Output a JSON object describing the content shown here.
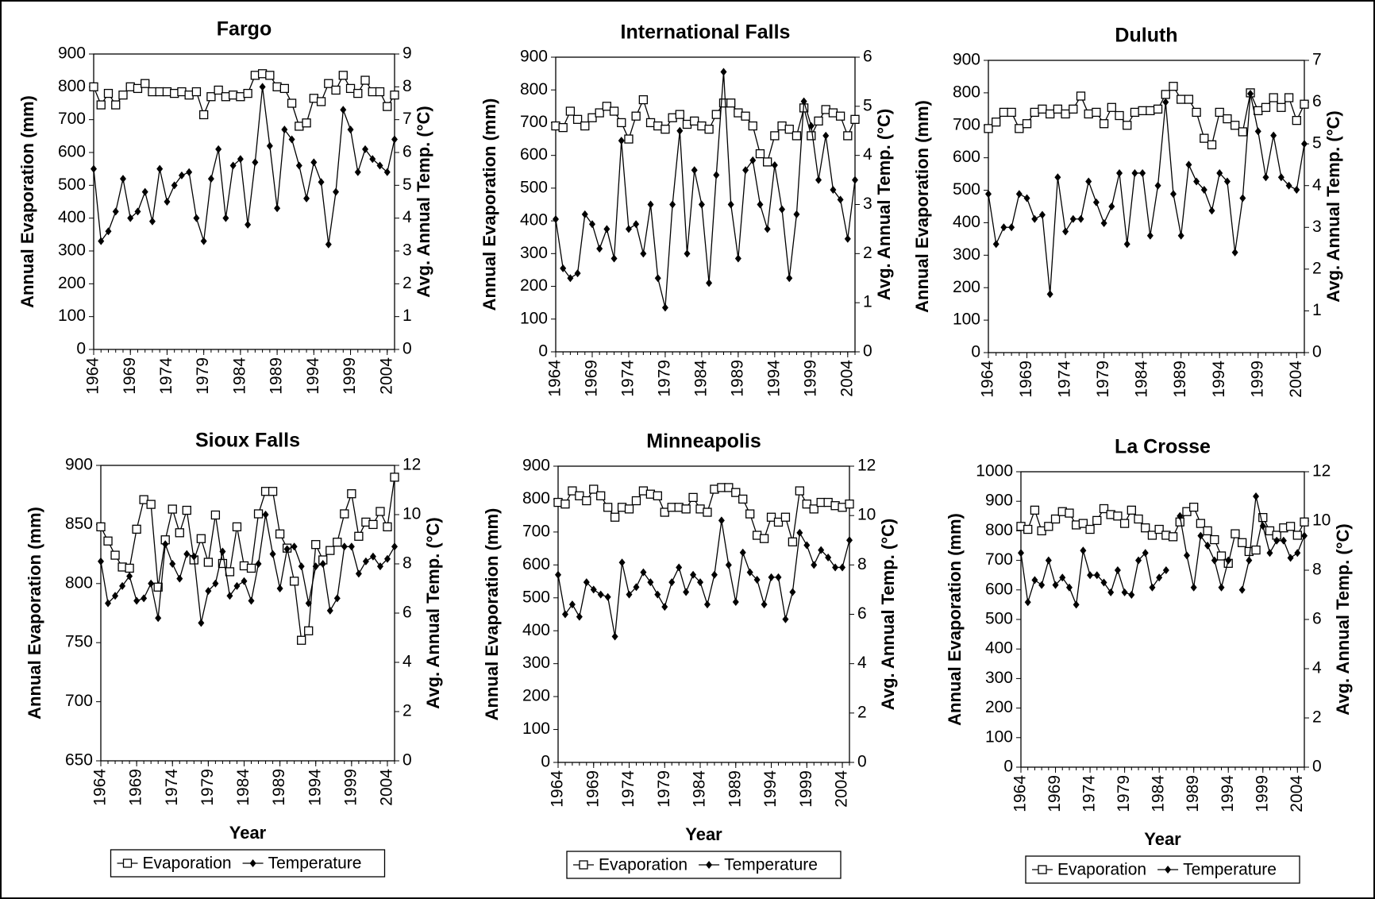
{
  "chart_data": [
    {
      "type": "line",
      "title": "Fargo",
      "ylabel": "Annual Evaporation (mm)",
      "y2label": "Avg. Annual Temp. (°C)",
      "x": [
        1964,
        1965,
        1966,
        1967,
        1968,
        1969,
        1970,
        1971,
        1972,
        1973,
        1974,
        1975,
        1976,
        1977,
        1978,
        1979,
        1980,
        1981,
        1982,
        1983,
        1984,
        1985,
        1986,
        1987,
        1988,
        1989,
        1990,
        1991,
        1992,
        1993,
        1994,
        1995,
        1996,
        1997,
        1998,
        1999,
        2000,
        2001,
        2002,
        2003,
        2004,
        2005
      ],
      "xlim": [
        1964,
        2005
      ],
      "xticks": [
        1964,
        1969,
        1974,
        1979,
        1984,
        1989,
        1994,
        1999,
        2004
      ],
      "ylim": [
        0,
        900
      ],
      "yticks": [
        0,
        100,
        200,
        300,
        400,
        500,
        600,
        700,
        800,
        900
      ],
      "y2lim": [
        0,
        9
      ],
      "y2ticks": [
        0,
        1,
        2,
        3,
        4,
        5,
        6,
        7,
        8,
        9
      ],
      "series": [
        {
          "name": "Evaporation",
          "color": "#000000",
          "marker": "square",
          "values": [
            800,
            745,
            780,
            745,
            775,
            800,
            795,
            810,
            785,
            785,
            785,
            780,
            785,
            775,
            785,
            715,
            770,
            790,
            770,
            775,
            770,
            780,
            835,
            840,
            835,
            800,
            795,
            750,
            680,
            690,
            765,
            755,
            810,
            790,
            835,
            795,
            780,
            820,
            785,
            785,
            740,
            775
          ]
        },
        {
          "name": "Temperature",
          "color": "#000000",
          "marker": "diamond",
          "axis": "y2",
          "values": [
            5.5,
            3.3,
            3.6,
            4.2,
            5.2,
            4.0,
            4.2,
            4.8,
            3.9,
            5.5,
            4.5,
            5.0,
            5.3,
            5.4,
            4.0,
            3.3,
            5.2,
            6.1,
            4.0,
            5.6,
            5.8,
            3.8,
            5.7,
            8.0,
            6.2,
            4.3,
            6.7,
            6.4,
            5.6,
            4.6,
            5.7,
            5.1,
            3.2,
            4.8,
            7.3,
            6.7,
            5.4,
            6.1,
            5.8,
            5.6,
            5.4,
            6.4
          ]
        }
      ]
    },
    {
      "type": "line",
      "title": "International Falls",
      "ylabel": "Annual Evaporation (mm)",
      "y2label": "Avg. Annual Temp. (°C)",
      "x": [
        1964,
        1965,
        1966,
        1967,
        1968,
        1969,
        1970,
        1971,
        1972,
        1973,
        1974,
        1975,
        1976,
        1977,
        1978,
        1979,
        1980,
        1981,
        1982,
        1983,
        1984,
        1985,
        1986,
        1987,
        1988,
        1989,
        1990,
        1991,
        1992,
        1993,
        1994,
        1995,
        1996,
        1997,
        1998,
        1999,
        2000,
        2001,
        2002,
        2003,
        2004,
        2005
      ],
      "xlim": [
        1964,
        2005
      ],
      "xticks": [
        1964,
        1969,
        1974,
        1979,
        1984,
        1989,
        1994,
        1999,
        2004
      ],
      "ylim": [
        0,
        900
      ],
      "yticks": [
        0,
        100,
        200,
        300,
        400,
        500,
        600,
        700,
        800,
        900
      ],
      "y2lim": [
        0,
        6
      ],
      "y2ticks": [
        0,
        1,
        2,
        3,
        4,
        5,
        6
      ],
      "series": [
        {
          "name": "Evaporation",
          "color": "#000000",
          "marker": "square",
          "values": [
            690,
            685,
            735,
            710,
            690,
            715,
            730,
            750,
            735,
            700,
            650,
            720,
            770,
            700,
            690,
            680,
            715,
            725,
            695,
            705,
            690,
            680,
            725,
            760,
            760,
            730,
            720,
            690,
            605,
            580,
            660,
            690,
            680,
            660,
            745,
            660,
            705,
            740,
            730,
            720,
            660,
            710
          ]
        },
        {
          "name": "Temperature",
          "color": "#000000",
          "marker": "diamond",
          "axis": "y2",
          "values": [
            2.7,
            1.7,
            1.5,
            1.6,
            2.8,
            2.6,
            2.1,
            2.5,
            1.9,
            4.3,
            2.5,
            2.6,
            2.0,
            3.0,
            1.5,
            0.9,
            3.0,
            4.5,
            2.0,
            3.7,
            3.0,
            1.4,
            3.6,
            5.7,
            3.0,
            1.9,
            3.7,
            3.9,
            3.0,
            2.5,
            3.8,
            2.9,
            1.5,
            2.8,
            5.1,
            4.6,
            3.5,
            4.4,
            3.3,
            3.1,
            2.3,
            3.5
          ]
        }
      ]
    },
    {
      "type": "line",
      "title": "Duluth",
      "ylabel": "Annual Evaporation (mm)",
      "y2label": "Avg. Annual Temp. (°C)",
      "x": [
        1964,
        1965,
        1966,
        1967,
        1968,
        1969,
        1970,
        1971,
        1972,
        1973,
        1974,
        1975,
        1976,
        1977,
        1978,
        1979,
        1980,
        1981,
        1982,
        1983,
        1984,
        1985,
        1986,
        1987,
        1988,
        1989,
        1990,
        1991,
        1992,
        1993,
        1994,
        1995,
        1996,
        1997,
        1998,
        1999,
        2000,
        2001,
        2002,
        2003,
        2004,
        2005
      ],
      "xlim": [
        1964,
        2005
      ],
      "xticks": [
        1964,
        1969,
        1974,
        1979,
        1984,
        1989,
        1994,
        1999,
        2004
      ],
      "ylim": [
        0,
        900
      ],
      "yticks": [
        0,
        100,
        200,
        300,
        400,
        500,
        600,
        700,
        800,
        900
      ],
      "y2lim": [
        0,
        7
      ],
      "y2ticks": [
        0,
        1,
        2,
        3,
        4,
        5,
        6,
        7
      ],
      "series": [
        {
          "name": "Evaporation",
          "color": "#000000",
          "marker": "square",
          "values": [
            690,
            710,
            740,
            740,
            690,
            705,
            740,
            750,
            735,
            750,
            735,
            750,
            790,
            735,
            740,
            705,
            755,
            730,
            700,
            740,
            745,
            745,
            750,
            795,
            820,
            780,
            780,
            740,
            660,
            640,
            740,
            720,
            700,
            680,
            800,
            745,
            755,
            785,
            755,
            785,
            715,
            765
          ]
        },
        {
          "name": "Temperature",
          "color": "#000000",
          "marker": "diamond",
          "axis": "y2",
          "values": [
            3.8,
            2.6,
            3.0,
            3.0,
            3.8,
            3.7,
            3.2,
            3.3,
            1.4,
            4.2,
            2.9,
            3.2,
            3.2,
            4.1,
            3.6,
            3.1,
            3.5,
            4.3,
            2.6,
            4.3,
            4.3,
            2.8,
            4.0,
            6.0,
            3.8,
            2.8,
            4.5,
            4.1,
            3.9,
            3.4,
            4.3,
            4.1,
            2.4,
            3.7,
            6.2,
            5.3,
            4.2,
            5.2,
            4.2,
            4.0,
            3.9,
            5.0
          ]
        }
      ]
    },
    {
      "type": "line",
      "title": "Sioux Falls",
      "ylabel": "Annual Evaporation (mm)",
      "y2label": "Avg. Annual Temp. (°C)",
      "xlabel": "Year",
      "legend": "bottom",
      "x": [
        1964,
        1965,
        1966,
        1967,
        1968,
        1969,
        1970,
        1971,
        1972,
        1973,
        1974,
        1975,
        1976,
        1977,
        1978,
        1979,
        1980,
        1981,
        1982,
        1983,
        1984,
        1985,
        1986,
        1987,
        1988,
        1989,
        1990,
        1991,
        1992,
        1993,
        1994,
        1995,
        1996,
        1997,
        1998,
        1999,
        2000,
        2001,
        2002,
        2003,
        2004,
        2005
      ],
      "xlim": [
        1964,
        2005
      ],
      "xticks": [
        1964,
        1969,
        1974,
        1979,
        1984,
        1989,
        1994,
        1999,
        2004
      ],
      "ylim": [
        650,
        900
      ],
      "yticks": [
        650,
        700,
        750,
        800,
        850,
        900
      ],
      "y2lim": [
        0,
        12
      ],
      "y2ticks": [
        0,
        2,
        4,
        6,
        8,
        10,
        12
      ],
      "series": [
        {
          "name": "Evaporation",
          "color": "#000000",
          "marker": "square",
          "values": [
            848,
            836,
            824,
            814,
            813,
            846,
            871,
            867,
            797,
            837,
            863,
            843,
            862,
            820,
            838,
            818,
            858,
            817,
            810,
            848,
            815,
            813,
            859,
            878,
            878,
            842,
            830,
            802,
            752,
            760,
            833,
            820,
            828,
            835,
            859,
            876,
            840,
            852,
            850,
            861,
            848,
            890
          ]
        },
        {
          "name": "Temperature",
          "color": "#000000",
          "marker": "diamond",
          "axis": "y2",
          "values": [
            8.1,
            6.4,
            6.7,
            7.1,
            7.5,
            6.5,
            6.6,
            7.2,
            5.8,
            8.8,
            8.0,
            7.4,
            8.4,
            8.3,
            5.6,
            6.9,
            7.2,
            8.5,
            6.7,
            7.1,
            7.3,
            6.5,
            8.0,
            10.0,
            8.4,
            7.0,
            8.6,
            8.7,
            7.9,
            6.4,
            7.9,
            8.0,
            6.1,
            6.6,
            8.7,
            8.7,
            7.6,
            8.1,
            8.3,
            7.9,
            8.2,
            8.7
          ]
        }
      ]
    },
    {
      "type": "line",
      "title": "Minneapolis",
      "ylabel": "Annual Evaporation (mm)",
      "y2label": "Avg. Annual Temp. (°C)",
      "xlabel": "Year",
      "legend": "bottom",
      "x": [
        1964,
        1965,
        1966,
        1967,
        1968,
        1969,
        1970,
        1971,
        1972,
        1973,
        1974,
        1975,
        1976,
        1977,
        1978,
        1979,
        1980,
        1981,
        1982,
        1983,
        1984,
        1985,
        1986,
        1987,
        1988,
        1989,
        1990,
        1991,
        1992,
        1993,
        1994,
        1995,
        1996,
        1997,
        1998,
        1999,
        2000,
        2001,
        2002,
        2003,
        2004,
        2005
      ],
      "xlim": [
        1964,
        2005
      ],
      "xticks": [
        1964,
        1969,
        1974,
        1979,
        1984,
        1989,
        1994,
        1999,
        2004
      ],
      "ylim": [
        0,
        900
      ],
      "yticks": [
        0,
        100,
        200,
        300,
        400,
        500,
        600,
        700,
        800,
        900
      ],
      "y2lim": [
        0,
        12
      ],
      "y2ticks": [
        0,
        2,
        4,
        6,
        8,
        10,
        12
      ],
      "series": [
        {
          "name": "Evaporation",
          "color": "#000000",
          "marker": "square",
          "values": [
            790,
            785,
            825,
            810,
            795,
            830,
            810,
            775,
            745,
            775,
            770,
            795,
            825,
            815,
            810,
            760,
            775,
            775,
            770,
            805,
            770,
            760,
            830,
            835,
            835,
            820,
            800,
            755,
            690,
            680,
            745,
            730,
            745,
            670,
            825,
            785,
            770,
            790,
            790,
            780,
            775,
            785
          ]
        },
        {
          "name": "Temperature",
          "color": "#000000",
          "marker": "diamond",
          "axis": "y2",
          "values": [
            7.6,
            6.0,
            6.4,
            5.9,
            7.3,
            7.0,
            6.8,
            6.7,
            5.1,
            8.1,
            6.8,
            7.1,
            7.7,
            7.3,
            6.8,
            6.3,
            7.3,
            7.9,
            6.9,
            7.6,
            7.3,
            6.4,
            7.6,
            9.8,
            8.0,
            6.5,
            8.5,
            7.7,
            7.4,
            6.4,
            7.5,
            7.5,
            5.8,
            6.9,
            9.3,
            8.8,
            8.0,
            8.6,
            8.3,
            7.9,
            7.9,
            9.0
          ]
        }
      ]
    },
    {
      "type": "line",
      "title": "La Crosse",
      "ylabel": "Annual Evaporation (mm)",
      "y2label": "Avg. Annual Temp. (°C)",
      "xlabel": "Year",
      "legend": "bottom",
      "x": [
        1964,
        1965,
        1966,
        1967,
        1968,
        1969,
        1970,
        1971,
        1972,
        1973,
        1974,
        1975,
        1976,
        1977,
        1978,
        1979,
        1980,
        1981,
        1982,
        1983,
        1984,
        1985,
        1986,
        1987,
        1988,
        1989,
        1990,
        1991,
        1992,
        1993,
        1994,
        1995,
        1996,
        1997,
        1998,
        1999,
        2000,
        2001,
        2002,
        2003,
        2004,
        2005
      ],
      "xlim": [
        1964,
        2005
      ],
      "xticks": [
        1964,
        1969,
        1974,
        1979,
        1984,
        1989,
        1994,
        1999,
        2004
      ],
      "ylim": [
        0,
        1000
      ],
      "yticks": [
        0,
        100,
        200,
        300,
        400,
        500,
        600,
        700,
        800,
        900,
        1000
      ],
      "y2lim": [
        0,
        12
      ],
      "y2ticks": [
        0,
        2,
        4,
        6,
        8,
        10,
        12
      ],
      "series": [
        {
          "name": "Evaporation",
          "color": "#000000",
          "marker": "square",
          "values": [
            815,
            805,
            870,
            800,
            815,
            840,
            865,
            860,
            820,
            825,
            805,
            835,
            875,
            855,
            850,
            825,
            870,
            840,
            810,
            785,
            805,
            785,
            780,
            830,
            865,
            880,
            825,
            800,
            770,
            715,
            690,
            790,
            760,
            730,
            735,
            845,
            800,
            785,
            810,
            815,
            785,
            830
          ]
        },
        {
          "name": "Temperature",
          "color": "#000000",
          "marker": "diamond",
          "axis": "y2",
          "values": [
            8.7,
            6.7,
            7.6,
            7.4,
            8.4,
            7.4,
            7.7,
            7.3,
            6.6,
            8.8,
            7.8,
            7.8,
            7.5,
            7.1,
            8.0,
            7.1,
            7.0,
            8.4,
            8.7,
            7.3,
            7.7,
            8.0,
            null,
            10.2,
            8.6,
            7.3,
            9.4,
            9.0,
            8.4,
            7.3,
            8.4,
            null,
            7.2,
            8.4,
            11.0,
            9.8,
            8.7,
            9.2,
            9.2,
            8.5,
            8.7,
            9.4
          ]
        }
      ]
    }
  ]
}
